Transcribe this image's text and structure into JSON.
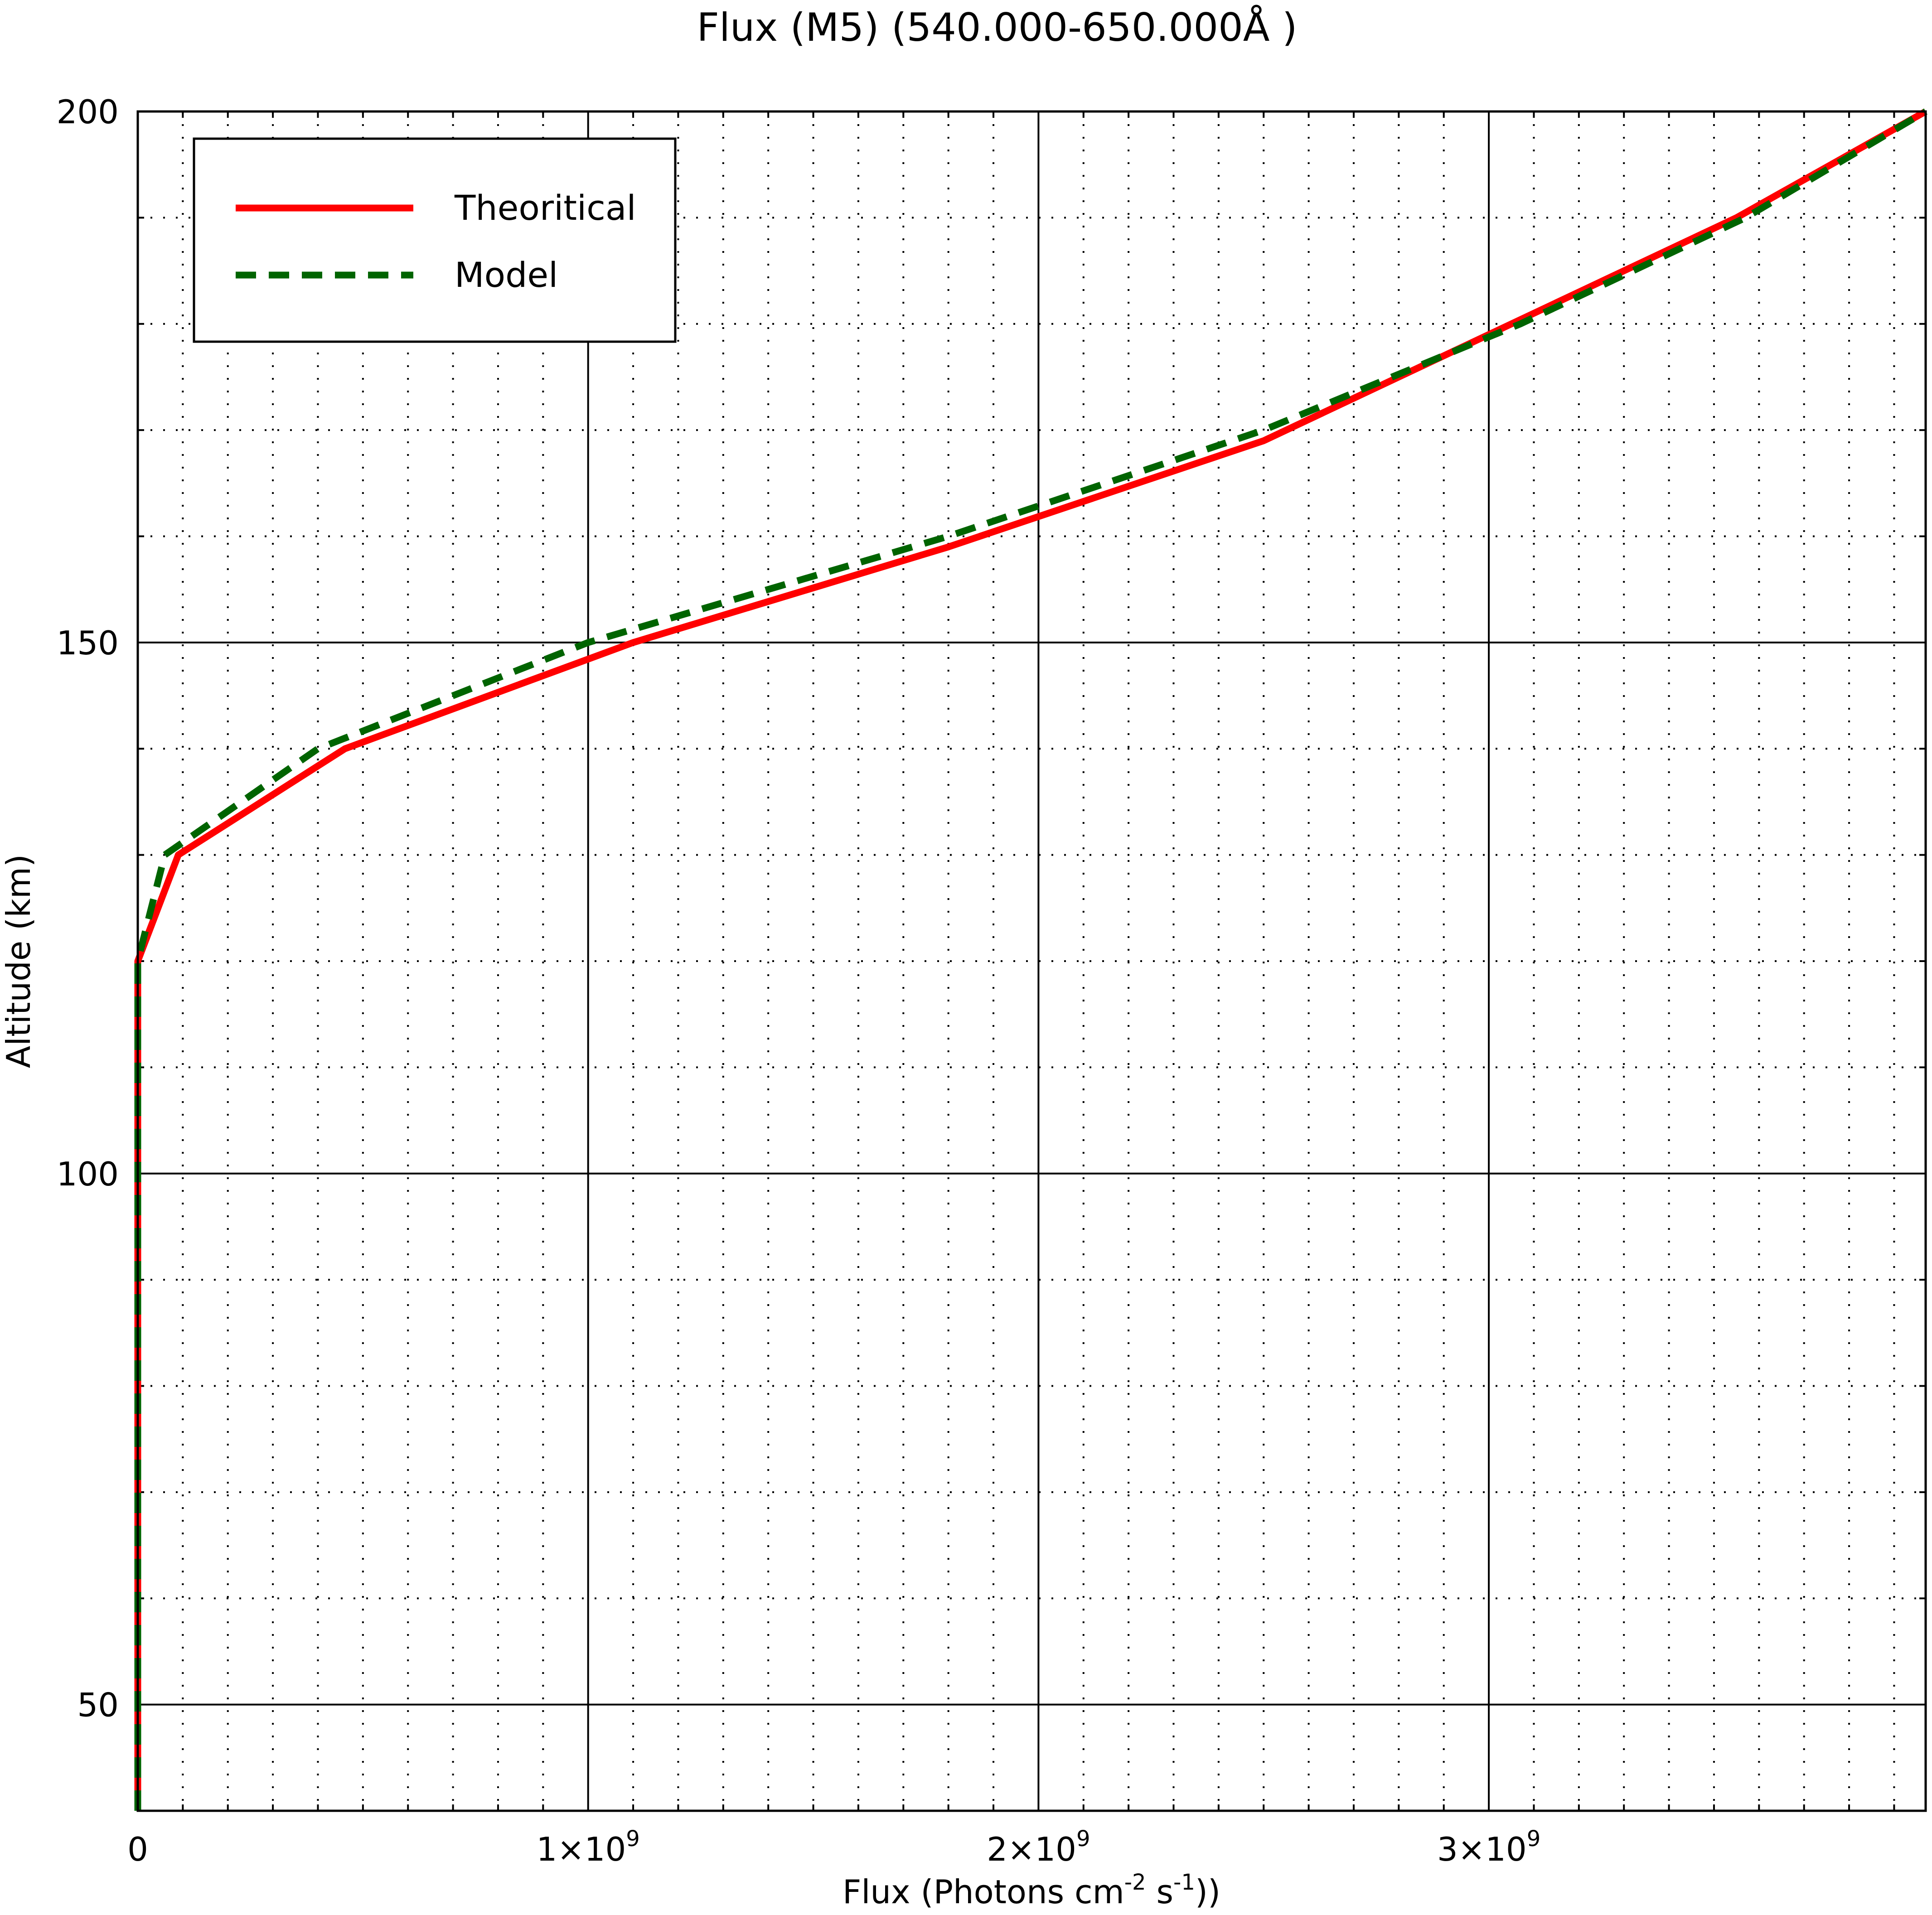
{
  "chart_data": {
    "type": "line",
    "title": "Flux (M5) (540.000-650.000Å )",
    "xlabel": {
      "base": "Flux (Photons cm",
      "exp1": "-2",
      "mid": " s",
      "exp2": "-1",
      "end": "))"
    },
    "ylabel": "Altitude (km)",
    "xlim": [
      0,
      3970000000
    ],
    "ylim": [
      40,
      200
    ],
    "x_ticks": [
      {
        "value": 0,
        "label": "0",
        "mantissa": "",
        "exp": ""
      },
      {
        "value": 1000000000,
        "label": "",
        "mantissa": "1×10",
        "exp": "9"
      },
      {
        "value": 2000000000,
        "label": "",
        "mantissa": "2×10",
        "exp": "9"
      },
      {
        "value": 3000000000,
        "label": "",
        "mantissa": "3×10",
        "exp": "9"
      }
    ],
    "y_ticks": [
      {
        "value": 50,
        "label": "50"
      },
      {
        "value": 100,
        "label": "100"
      },
      {
        "value": 150,
        "label": "150"
      },
      {
        "value": 200,
        "label": "200"
      }
    ],
    "grid": true,
    "legend_position": "top-left",
    "series": [
      {
        "name": "Theoritical",
        "color": "#ff0000",
        "style": "solid",
        "x": [
          0,
          0,
          0,
          90000000,
          460000000,
          1100000000,
          1800000000,
          2500000000,
          3050000000,
          3550000000,
          3970000000
        ],
        "y": [
          40,
          100,
          120,
          130,
          140,
          150,
          159,
          169,
          180,
          190,
          200
        ]
      },
      {
        "name": "Model",
        "color": "#006400",
        "style": "dashed",
        "x": [
          0,
          0,
          0,
          60000000,
          400000000,
          1000000000,
          1800000000,
          2500000000,
          3070000000,
          3570000000,
          3970000000
        ],
        "y": [
          40,
          100,
          120,
          130,
          140,
          150,
          160,
          170,
          180,
          190,
          200
        ]
      }
    ]
  }
}
